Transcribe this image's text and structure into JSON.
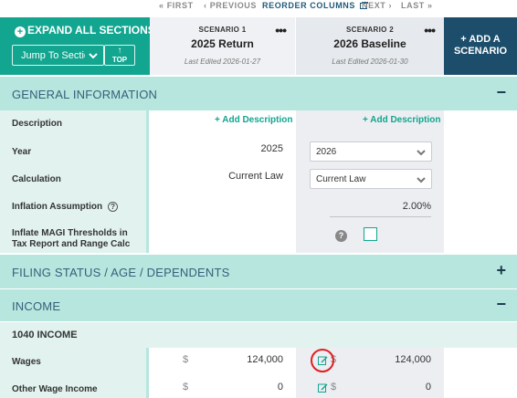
{
  "nav": {
    "first": "« FIRST",
    "previous": "‹ PREVIOUS",
    "reorder": "REORDER COLUMNS",
    "next": "NEXT ›",
    "last": "LAST »"
  },
  "left_panel": {
    "expand_label": "EXPAND ALL SECTIONS",
    "jump_placeholder": "Jump To Section",
    "top_label": "TOP"
  },
  "scenarios": [
    {
      "label": "SCENARIO 1",
      "name": "2025 Return",
      "edited": "Last Edited 2026-01-27"
    },
    {
      "label": "SCENARIO 2",
      "name": "2026 Baseline",
      "edited": "Last Edited 2026-01-30"
    }
  ],
  "add_scenario": {
    "line1": "+ ADD A",
    "line2": "SCENARIO"
  },
  "sections": {
    "general": "GENERAL INFORMATION",
    "filing": "FILING STATUS / AGE / DEPENDENTS",
    "income": "INCOME",
    "income_sub": "1040 INCOME"
  },
  "rows": {
    "description": "Description",
    "year": "Year",
    "calculation": "Calculation",
    "inflation": "Inflation Assumption",
    "inflate_magi": "Inflate MAGI Thresholds in Tax Report and Range Calc",
    "wages": "Wages",
    "other_wage": "Other Wage Income"
  },
  "values": {
    "add_description": "+ Add Description",
    "year_s1": "2025",
    "year_s2": "2026",
    "calc_s1": "Current Law",
    "calc_s2": "Current Law",
    "inflation_s2": "2.00%",
    "currency": "$",
    "wages_s1": "124,000",
    "wages_s2": "124,000",
    "other_s1": "0",
    "other_s2": "0",
    "question": "?"
  },
  "colors": {
    "teal": "#12a58f",
    "band": "#b7e6de",
    "navy": "#1c4e6b",
    "highlight": "#e02020"
  },
  "icons": {
    "expand": "plus-circle-icon",
    "jump": "chevron-down-icon",
    "top": "arrow-up-icon",
    "menu": "more-horizontal-icon",
    "edit": "edit-icon",
    "help": "question-circle-icon",
    "collapse": "minus-icon",
    "expand_section": "plus-icon"
  }
}
